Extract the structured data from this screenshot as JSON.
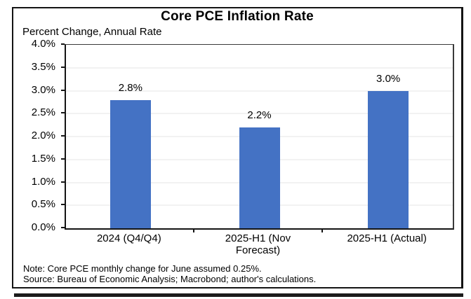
{
  "chart_data": {
    "type": "bar",
    "title": "Core PCE Inflation Rate",
    "subtitle": "Percent Change, Annual Rate",
    "categories": [
      "2024 (Q4/Q4)",
      "2025-H1 (Nov Forecast)",
      "2025-H1 (Actual)"
    ],
    "values": [
      2.8,
      2.2,
      3.0
    ],
    "value_labels": [
      "2.8%",
      "2.2%",
      "3.0%"
    ],
    "bar_color": "#4472C4",
    "xlabel": "",
    "ylabel": "",
    "ylim": [
      0,
      4
    ],
    "ytick_step": 0.5,
    "ytick_labels": [
      "0.0%",
      "0.5%",
      "1.0%",
      "1.5%",
      "2.0%",
      "2.5%",
      "3.0%",
      "3.5%",
      "4.0%"
    ],
    "grid": "horizontal, faint",
    "legend": "none"
  },
  "notes": {
    "note": "Note: Core PCE monthly change for June assumed 0.25%.",
    "source": "Source: Bureau of Economic Analysis; Macrobond; author's calculations."
  }
}
